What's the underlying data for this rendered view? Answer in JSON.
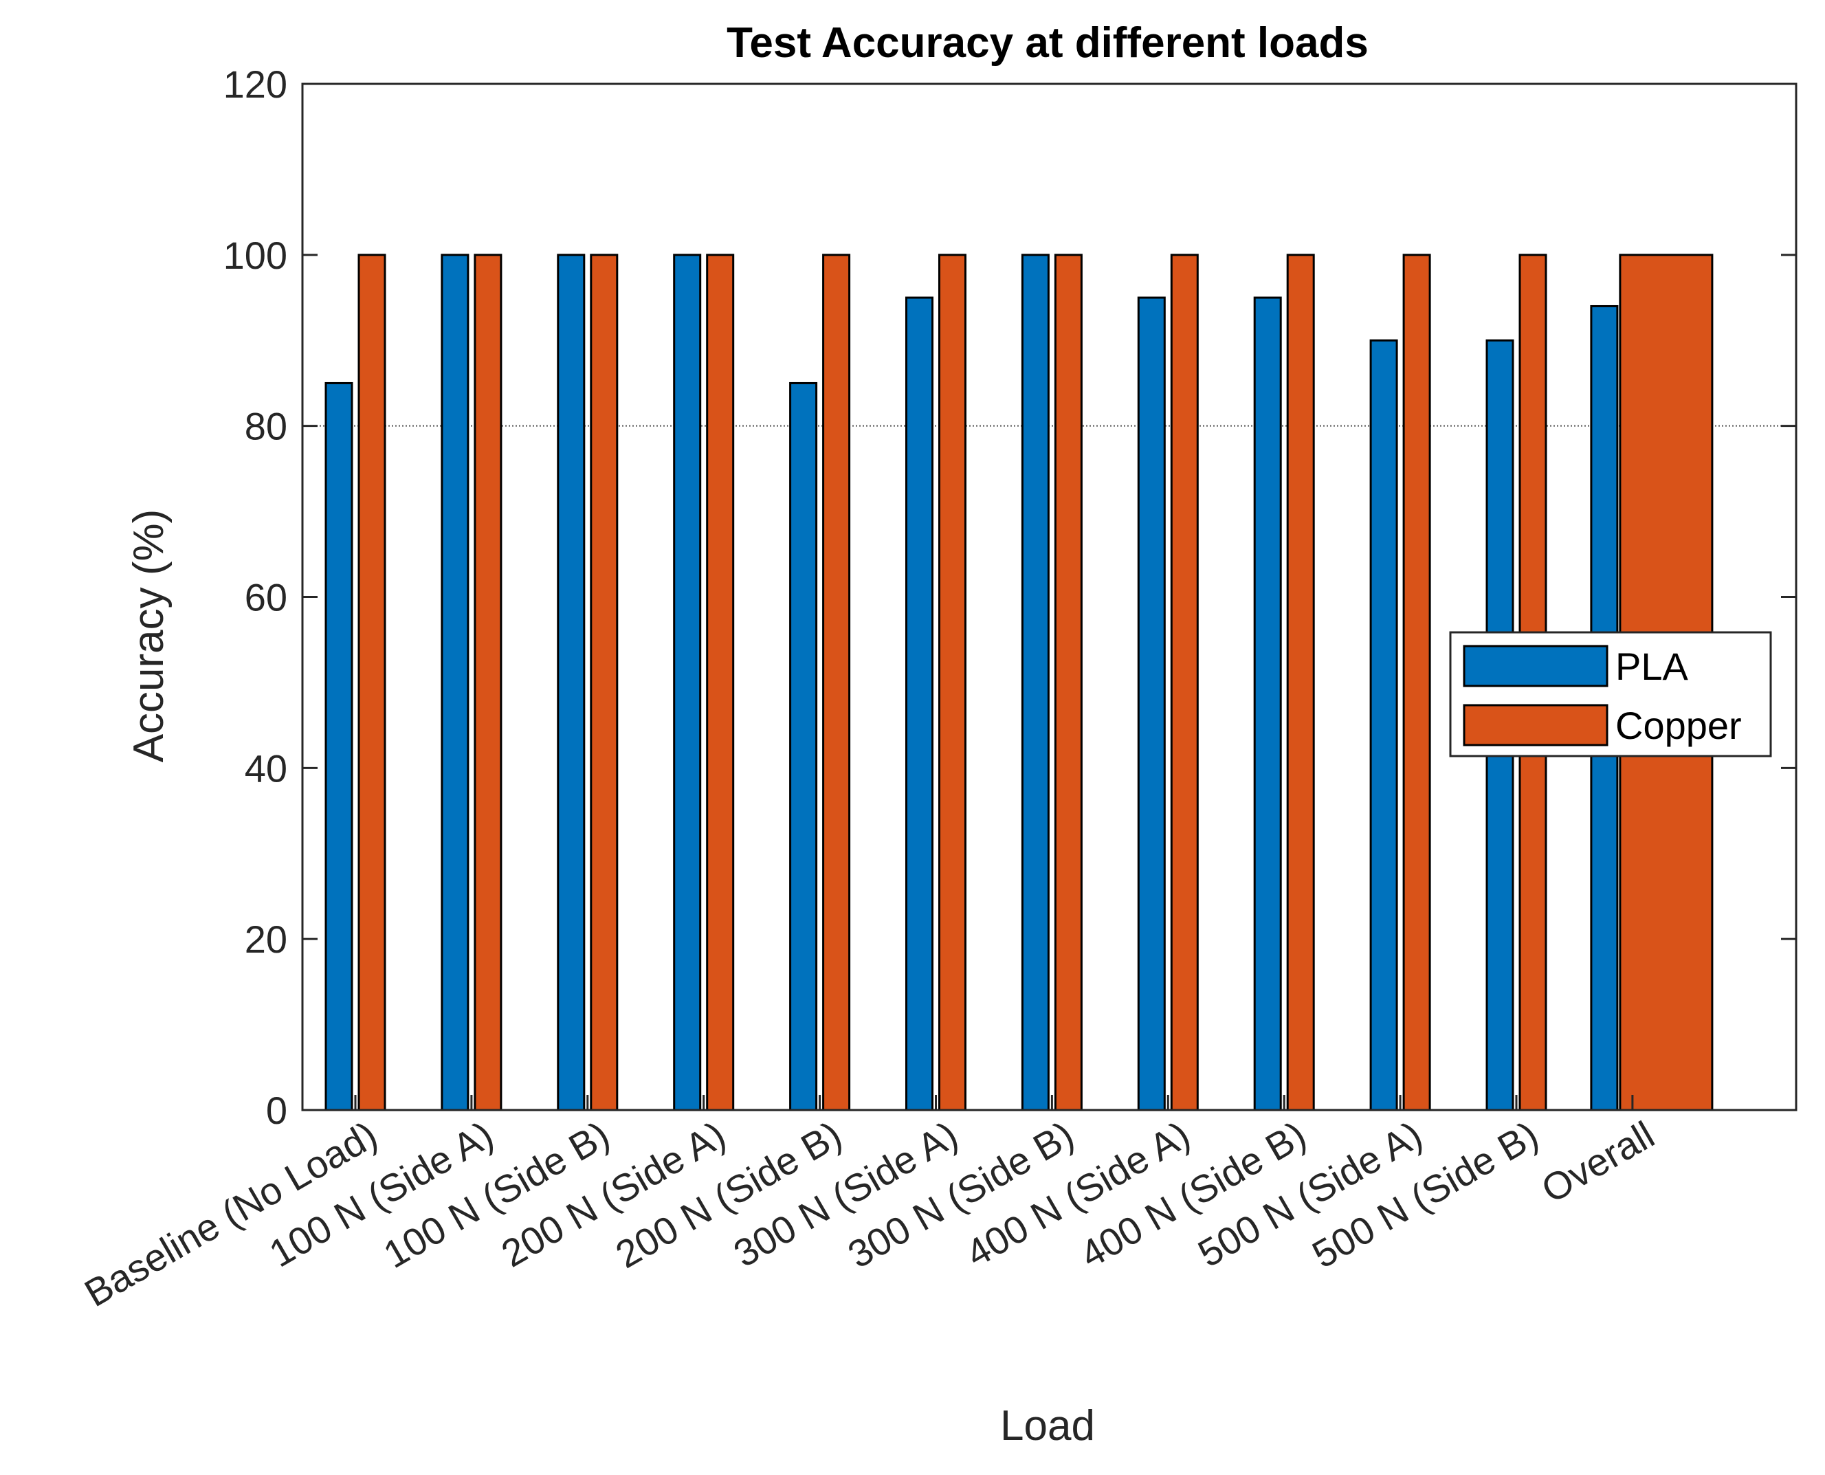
{
  "chart_data": {
    "type": "bar",
    "title": "Test Accuracy at different loads",
    "xlabel": "Load",
    "ylabel": "Accuracy (%)",
    "ylim": [
      0,
      120
    ],
    "yticks": [
      0,
      20,
      40,
      60,
      80,
      100,
      120
    ],
    "grid": false,
    "reference_line": {
      "y": 80,
      "style": "dotted"
    },
    "legend_position": "right",
    "categories": [
      "Baseline (No Load)",
      "100 N (Side A)",
      "100 N (Side B)",
      "200 N (Side A)",
      "200 N (Side B)",
      "300 N (Side A)",
      "300 N (Side B)",
      "400 N (Side A)",
      "400 N (Side B)",
      "500 N (Side A)",
      "500 N (Side B)",
      "Overall"
    ],
    "series": [
      {
        "name": "PLA",
        "color": "#0072BD",
        "values": [
          85,
          100,
          100,
          100,
          85,
          95,
          100,
          95,
          95,
          90,
          90,
          94
        ]
      },
      {
        "name": "Copper",
        "color": "#D95319",
        "values": [
          100,
          100,
          100,
          100,
          100,
          100,
          100,
          100,
          100,
          100,
          100,
          100
        ]
      }
    ]
  }
}
